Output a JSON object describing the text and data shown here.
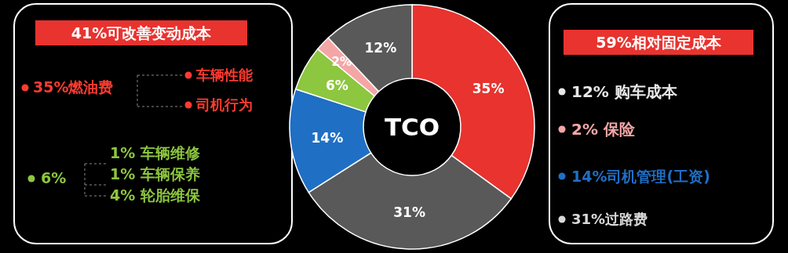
{
  "chart_data": [
    {
      "type": "other",
      "title": "41%可改善变动成本",
      "annotations": [
        "35%燃油费",
        "车辆性能",
        "司机行为",
        "6%",
        "1% 车辆维修",
        "1% 车辆保养",
        "4% 轮胎维保"
      ]
    },
    {
      "type": "donut",
      "categories": [
        null,
        null,
        null,
        null,
        null,
        null
      ],
      "values": [
        35,
        31,
        14,
        6,
        2,
        12
      ],
      "colors": [
        "#e8332f",
        "#595959",
        "#1f6fc5",
        "#8dc63f",
        "#f4a6a6",
        "#595959"
      ],
      "value_labels": [
        "35%",
        "31%",
        "14%",
        "6%",
        "2%",
        "12%"
      ],
      "annotations": [
        "TCO"
      ]
    },
    {
      "type": "other",
      "title": "59%相对固定成本",
      "annotations": [
        "12% 购车成本",
        "2%  保险",
        "14%司机管理(工资)",
        "31%过路费"
      ]
    }
  ]
}
